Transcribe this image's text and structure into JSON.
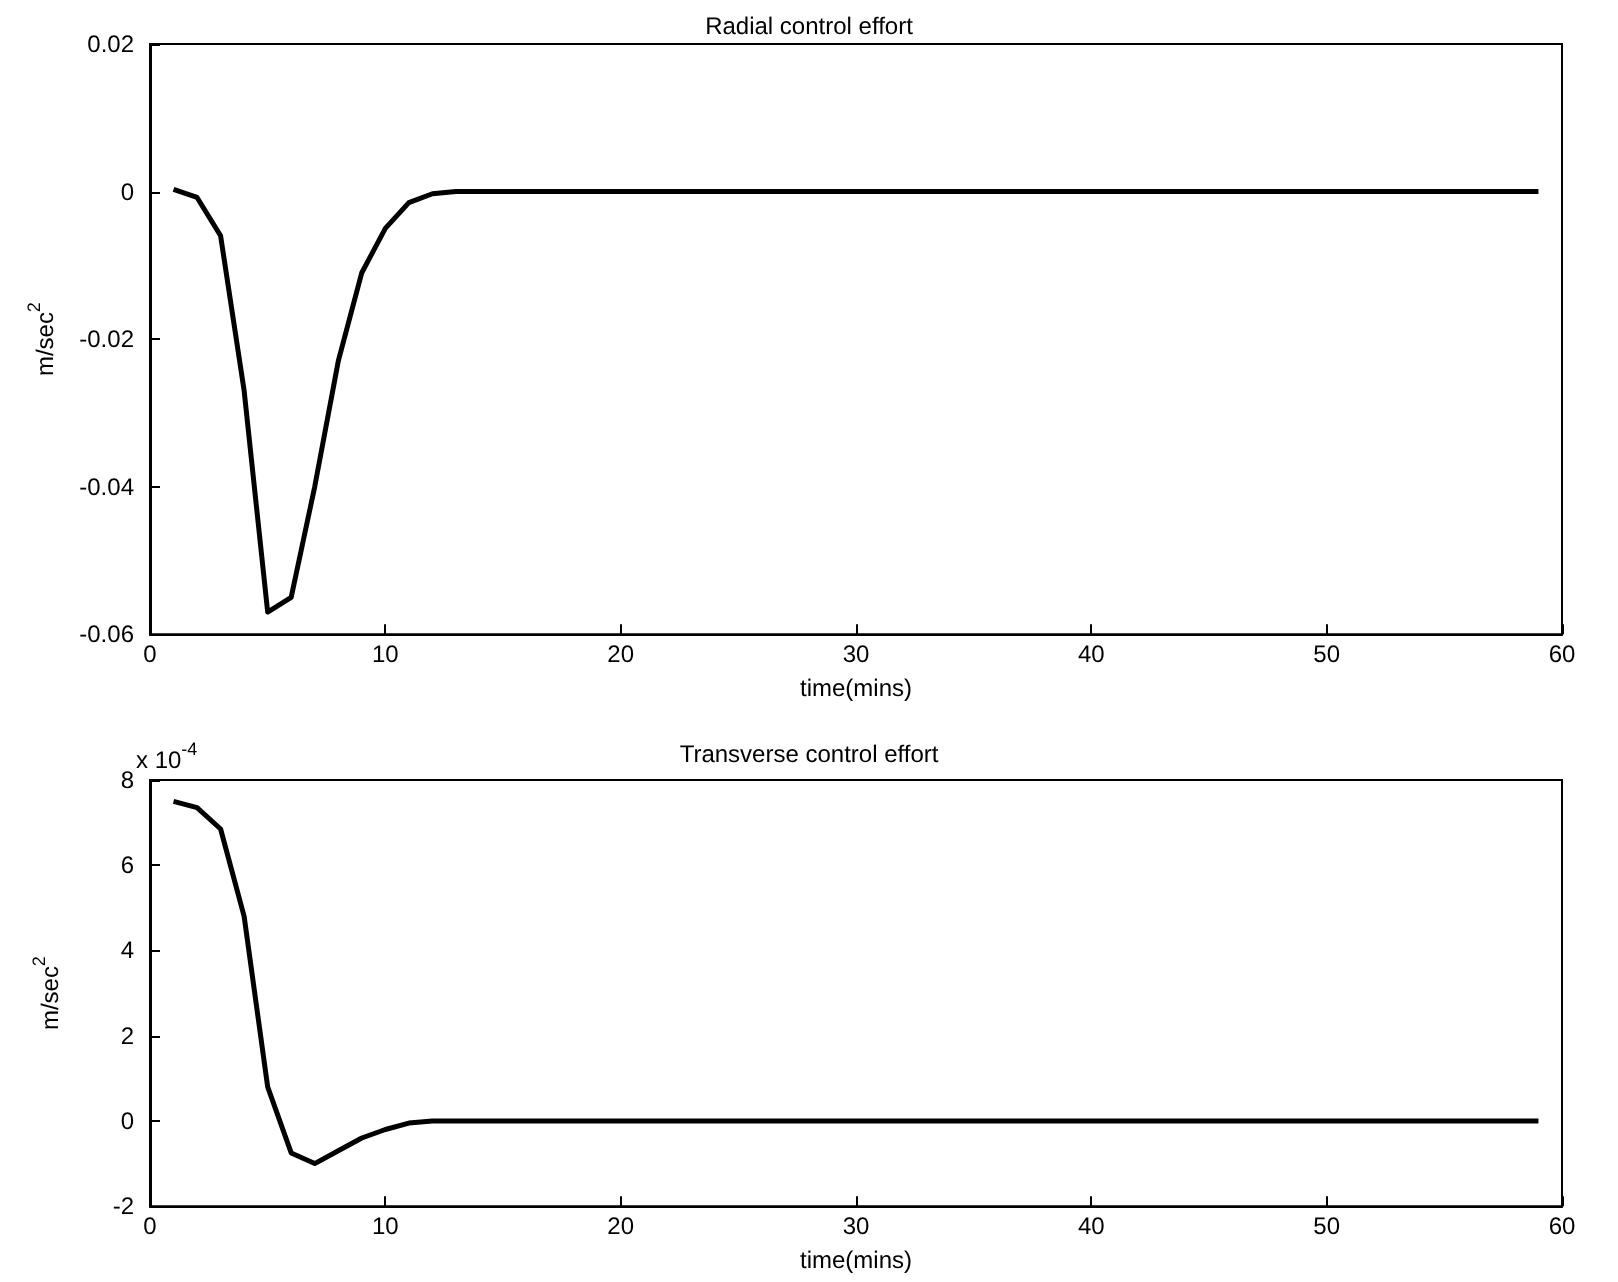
{
  "chart_data": [
    {
      "type": "line",
      "title": "Radial control effort",
      "xlabel": "time(mins)",
      "ylabel": "m/sec$^{2}$",
      "x": [
        1,
        2,
        3,
        4,
        5,
        6,
        7,
        8,
        9,
        10,
        11,
        12,
        13,
        59
      ],
      "series": [
        {
          "color": "#000000",
          "values": [
            0.0003,
            -0.0008,
            -0.006,
            -0.027,
            -0.057,
            -0.055,
            -0.04,
            -0.023,
            -0.011,
            -0.005,
            -0.0015,
            -0.0003,
            0,
            0
          ]
        }
      ],
      "xlim": [
        0,
        60
      ],
      "xticks": [
        0,
        10,
        20,
        30,
        40,
        50,
        60
      ],
      "ylim": [
        -0.06,
        0.02
      ],
      "yticks": [
        -0.06,
        -0.04,
        -0.02,
        0,
        0.02
      ],
      "grid": false
    },
    {
      "type": "line",
      "title": "Transverse control effort",
      "xlabel": "time(mins)",
      "ylabel": "m/sec$^{2}$",
      "annotations": [
        "x 10$^{-4}$"
      ],
      "x": [
        1,
        2,
        3,
        4,
        5,
        6,
        7,
        8,
        9,
        10,
        11,
        12,
        59
      ],
      "series": [
        {
          "color": "#000000",
          "values": [
            7.5,
            7.35,
            6.85,
            4.8,
            0.8,
            -0.75,
            -1.0,
            -0.7,
            -0.4,
            -0.2,
            -0.05,
            0,
            0
          ]
        }
      ],
      "xlim": [
        0,
        60
      ],
      "xticks": [
        0,
        10,
        20,
        30,
        40,
        50,
        60
      ],
      "ylim": [
        -2,
        8
      ],
      "yticks": [
        -2,
        0,
        2,
        4,
        6,
        8
      ],
      "grid": false
    }
  ]
}
